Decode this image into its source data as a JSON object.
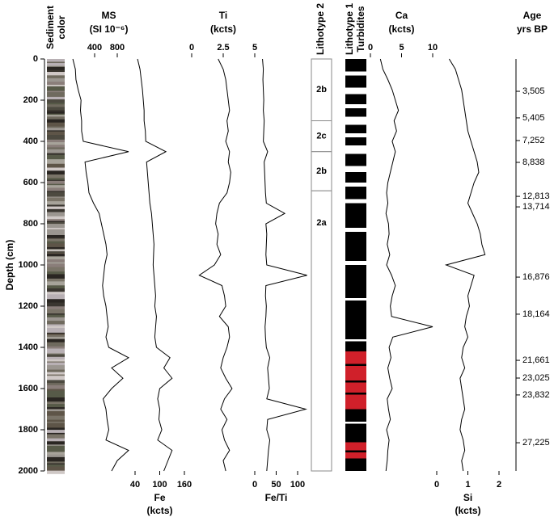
{
  "chart_data": {
    "type": "line",
    "ylabel": "Depth (cm)",
    "ylim": [
      0,
      2000
    ],
    "yticks": [
      0,
      200,
      400,
      600,
      800,
      1000,
      1200,
      1400,
      1600,
      1800,
      2000
    ],
    "sediment_color_label": [
      "Sediment",
      "color"
    ],
    "lithotype1_label": [
      "Lithotype 1",
      "Turbidites"
    ],
    "lithotype2_label": "Lithotype 2",
    "age_label": [
      "Age",
      "yrs BP"
    ],
    "lithotype2_units": [
      {
        "label": "2b",
        "top": 0,
        "bottom": 300
      },
      {
        "label": "2c",
        "top": 300,
        "bottom": 450
      },
      {
        "label": "2b",
        "top": 450,
        "bottom": 640
      },
      {
        "label": "2a",
        "top": 640,
        "bottom": 2000
      }
    ],
    "age_ticks": [
      {
        "depth": 157,
        "label": "3,505"
      },
      {
        "depth": 286,
        "label": "5,405"
      },
      {
        "depth": 396,
        "label": "7,252"
      },
      {
        "depth": 502,
        "label": "8,838"
      },
      {
        "depth": 667,
        "label": "12,813"
      },
      {
        "depth": 718,
        "label": "13,714"
      },
      {
        "depth": 1059,
        "label": "16,876"
      },
      {
        "depth": 1239,
        "label": "18,164"
      },
      {
        "depth": 1463,
        "label": "21,661"
      },
      {
        "depth": 1549,
        "label": "23,025"
      },
      {
        "depth": 1631,
        "label": "23,832"
      },
      {
        "depth": 1863,
        "label": "27,225"
      }
    ],
    "depth": [
      0,
      50,
      100,
      150,
      200,
      250,
      300,
      350,
      400,
      450,
      500,
      550,
      600,
      650,
      700,
      750,
      800,
      850,
      900,
      950,
      1000,
      1050,
      1100,
      1150,
      1200,
      1250,
      1300,
      1350,
      1400,
      1450,
      1500,
      1550,
      1600,
      1650,
      1700,
      1750,
      1800,
      1850,
      1900,
      1950,
      2000
    ],
    "series": [
      {
        "name": "MS",
        "unit": "(SI 10⁻⁶)",
        "color": "#000000",
        "label_side": "top",
        "xlim": [
          0,
          1300
        ],
        "xticks": [
          400,
          800
        ],
        "values": [
          15,
          60,
          70,
          110,
          160,
          150,
          170,
          170,
          200,
          1000,
          230,
          250,
          280,
          300,
          380,
          480,
          520,
          560,
          600,
          620,
          580,
          560,
          540,
          560,
          600,
          620,
          640,
          600,
          650,
          1000,
          700,
          900,
          700,
          550,
          600,
          620,
          650,
          600,
          1000,
          800,
          700
        ]
      },
      {
        "name": "Fe",
        "unit": "(kcts)",
        "color": "#000000",
        "label_side": "bottom",
        "xlim": [
          40,
          160
        ],
        "xticks": [
          40,
          100,
          160
        ],
        "values": [
          46,
          52,
          55,
          58,
          60,
          62,
          62,
          65,
          66,
          115,
          68,
          70,
          72,
          74,
          76,
          80,
          82,
          84,
          86,
          85,
          84,
          86,
          88,
          90,
          88,
          92,
          90,
          88,
          92,
          125,
          110,
          130,
          100,
          95,
          100,
          98,
          105,
          95,
          130,
          120,
          110
        ]
      },
      {
        "name": "Ti",
        "unit": "(kcts)",
        "color": "#000000",
        "label_side": "top",
        "xlim": [
          0,
          5
        ],
        "xticks": [
          0,
          2.5,
          5
        ],
        "values": [
          2.1,
          2.5,
          2.7,
          2.8,
          2.9,
          3.0,
          2.8,
          2.9,
          2.7,
          3.0,
          2.9,
          3.1,
          3.0,
          2.8,
          2.2,
          2.0,
          1.9,
          2.1,
          2.0,
          2.3,
          1.8,
          0.6,
          2.4,
          2.6,
          2.7,
          2.2,
          2.9,
          3.0,
          2.8,
          2.5,
          2.3,
          2.7,
          3.2,
          2.6,
          2.3,
          2.8,
          2.4,
          2.6,
          3.0,
          2.5,
          2.7
        ]
      },
      {
        "name": "Fe/Ti",
        "color": "#000000",
        "label_side": "bottom",
        "xlim": [
          0,
          100
        ],
        "xticks": [
          0,
          50,
          100
        ],
        "values": [
          18,
          20,
          19,
          20,
          21,
          20,
          22,
          21,
          20,
          30,
          22,
          23,
          24,
          25,
          27,
          70,
          26,
          28,
          27,
          26,
          28,
          122,
          26,
          25,
          27,
          26,
          24,
          25,
          27,
          35,
          30,
          32,
          34,
          28,
          119,
          30,
          28,
          35,
          32,
          30,
          28
        ]
      },
      {
        "name": "Ca",
        "unit": "(kcts)",
        "color": "#000000",
        "label_side": "top",
        "xlim": [
          0,
          10
        ],
        "xticks": [
          0,
          5,
          10
        ],
        "values": [
          1.6,
          2.0,
          2.8,
          3.5,
          4.0,
          4.5,
          3.8,
          4.2,
          3.5,
          4.0,
          3.6,
          3.2,
          2.8,
          2.6,
          2.8,
          2.5,
          2.9,
          3.0,
          2.7,
          3.1,
          2.6,
          3.4,
          4.0,
          3.5,
          3.2,
          3.4,
          10,
          3.6,
          3.0,
          3.3,
          2.8,
          3.1,
          3.5,
          2.7,
          2.9,
          3.2,
          2.6,
          3.0,
          2.8,
          2.7,
          2.5
        ]
      },
      {
        "name": "Si",
        "unit": "(kcts)",
        "color": "#000000",
        "label_side": "bottom",
        "xlim": [
          0,
          2
        ],
        "xticks": [
          0,
          1,
          2
        ],
        "values": [
          0.4,
          0.6,
          0.7,
          0.8,
          0.85,
          0.9,
          0.95,
          1.0,
          1.1,
          1.2,
          1.3,
          1.35,
          1.2,
          1.1,
          1.0,
          1.15,
          1.3,
          1.4,
          1.45,
          1.55,
          0.3,
          1.2,
          1.1,
          1.0,
          1.05,
          0.95,
          0.9,
          1.0,
          0.85,
          0.8,
          0.9,
          0.75,
          0.8,
          0.85,
          0.9,
          0.8,
          0.75,
          0.85,
          0.9,
          0.8,
          0.85
        ]
      }
    ]
  }
}
